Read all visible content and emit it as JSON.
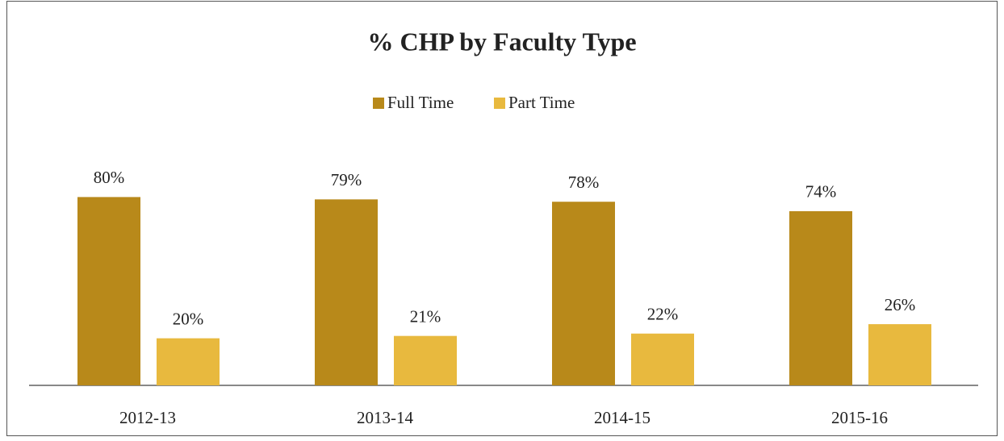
{
  "chart_data": {
    "type": "bar",
    "title": "% CHP by Faculty Type",
    "categories": [
      "2012-13",
      "2013-14",
      "2014-15",
      "2015-16"
    ],
    "series": [
      {
        "name": "Full Time",
        "color": "#b8891a",
        "values": [
          80,
          79,
          78,
          74
        ],
        "value_labels": [
          "80%",
          "79%",
          "78%",
          "74%"
        ]
      },
      {
        "name": "Part Time",
        "color": "#e8b93e",
        "values": [
          20,
          21,
          22,
          26
        ],
        "value_labels": [
          "20%",
          "21%",
          "22%",
          "26%"
        ]
      }
    ],
    "ylim": [
      0,
      100
    ],
    "legend": "top"
  }
}
